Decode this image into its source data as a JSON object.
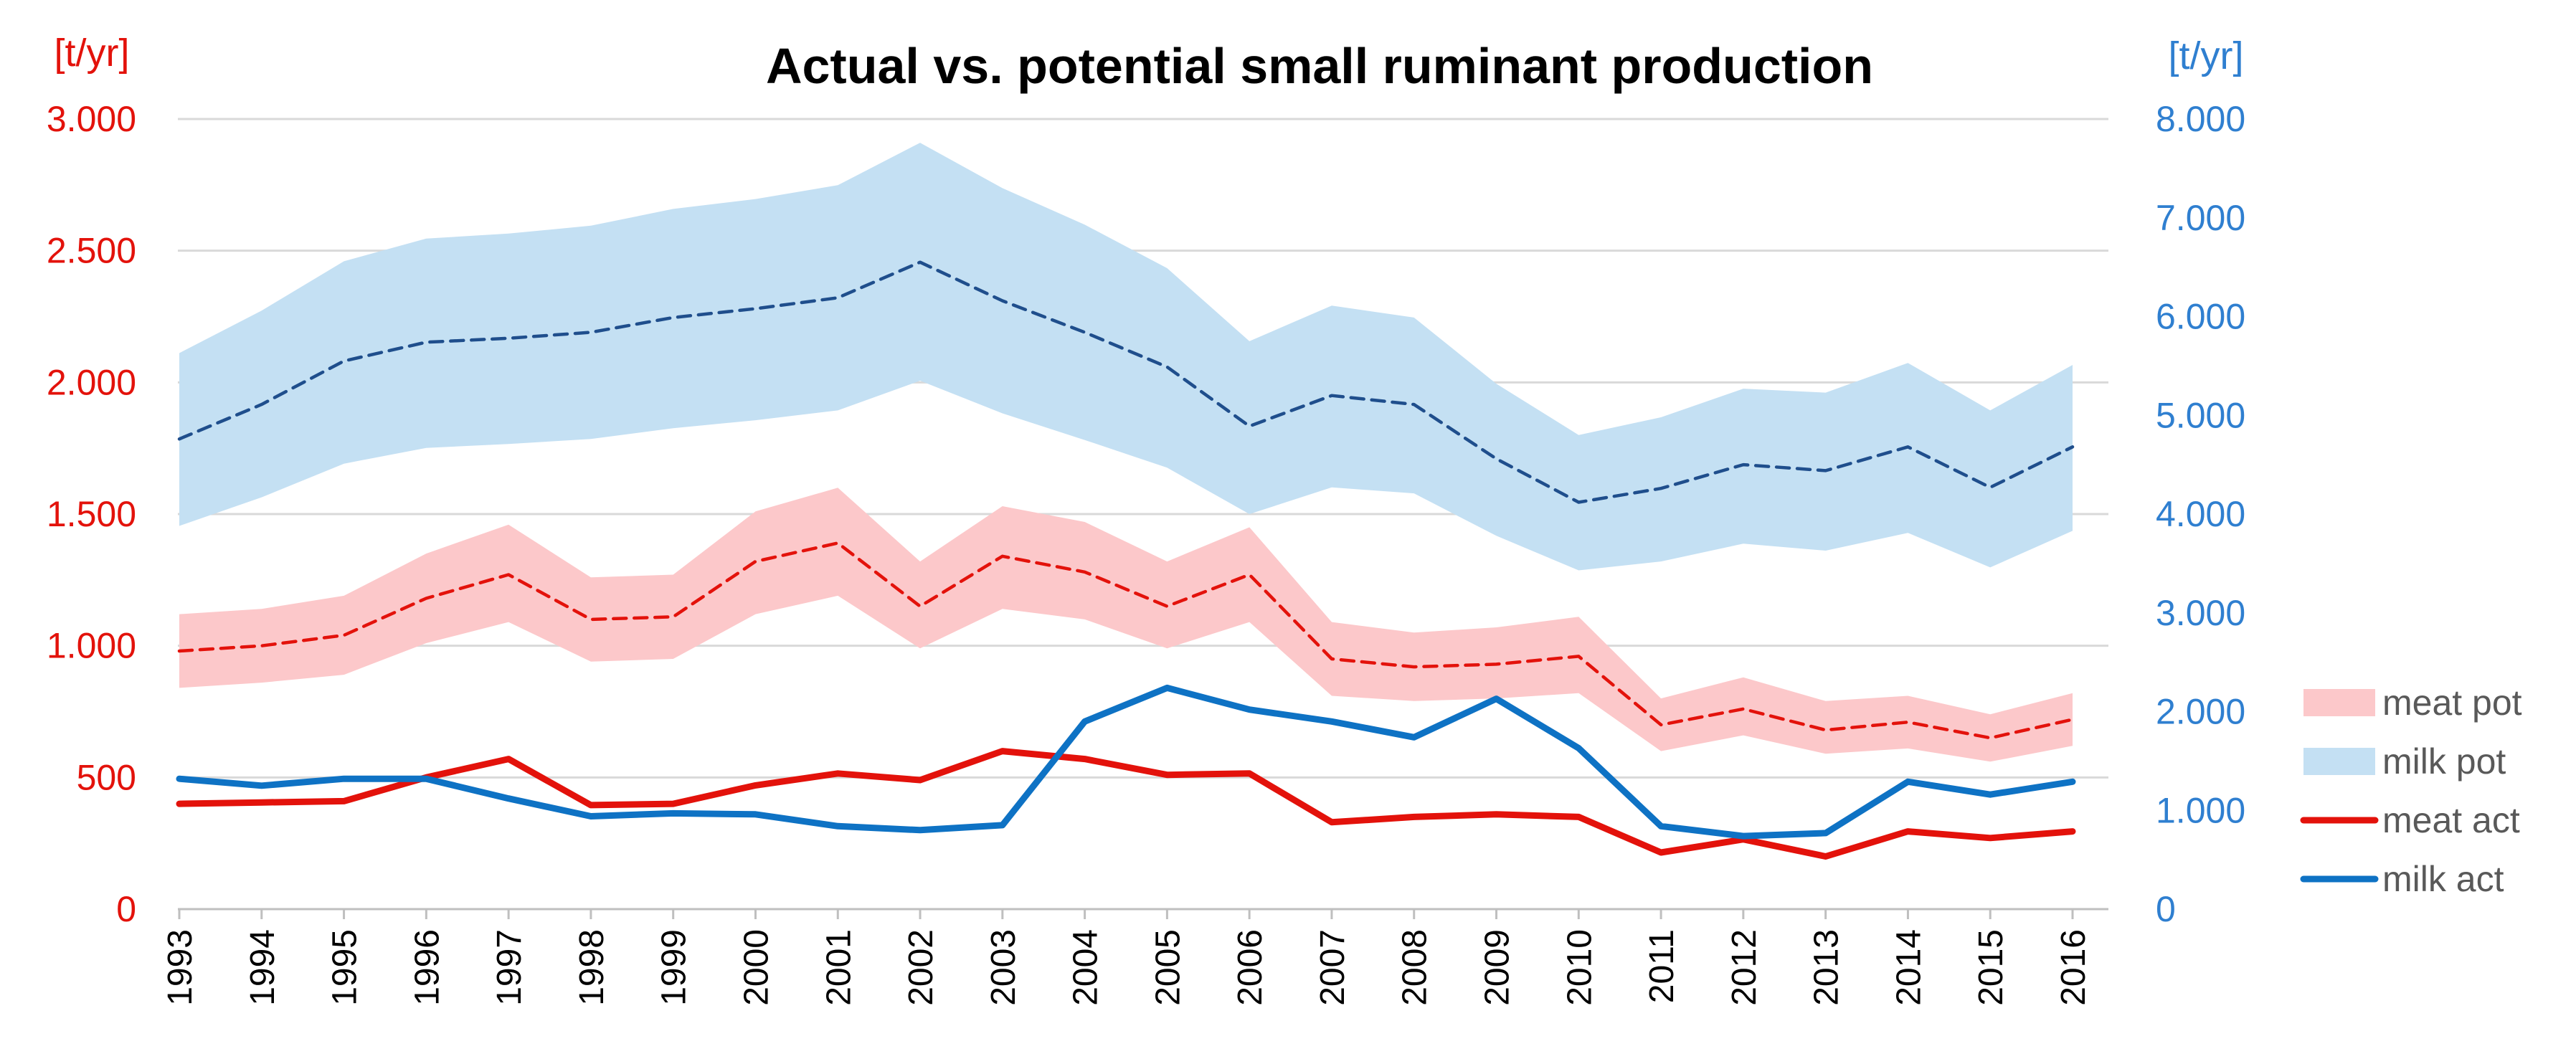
{
  "chart_data": {
    "type": "line",
    "title": "Actual vs. potential small ruminant production",
    "y_left_label": "[t/yr]",
    "y_right_label": "[t/yr]",
    "y_left_range": [
      0,
      3000
    ],
    "y_right_range": [
      0,
      8000
    ],
    "y_left_ticks": [
      0,
      500,
      1000,
      1500,
      2000,
      2500,
      3000
    ],
    "y_left_tick_labels": [
      "0",
      "500",
      "1.000",
      "1.500",
      "2.000",
      "2.500",
      "3.000"
    ],
    "y_right_ticks": [
      0,
      1000,
      2000,
      3000,
      4000,
      5000,
      6000,
      7000,
      8000
    ],
    "y_right_tick_labels": [
      "0",
      "1.000",
      "2.000",
      "3.000",
      "4.000",
      "5.000",
      "6.000",
      "7.000",
      "8.000"
    ],
    "grid": true,
    "legend_position": "right",
    "x": [
      "1993",
      "1994",
      "1995",
      "1996",
      "1997",
      "1998",
      "1999",
      "2000",
      "2001",
      "2002",
      "2003",
      "2004",
      "2005",
      "2006",
      "2007",
      "2008",
      "2009",
      "2010",
      "2011",
      "2012",
      "2013",
      "2014",
      "2015",
      "2016"
    ],
    "series": [
      {
        "name": "meat pot",
        "axis": "left",
        "style": "band",
        "color": "#fcc8ca",
        "upper": [
          1120,
          1140,
          1190,
          1350,
          1460,
          1260,
          1270,
          1510,
          1600,
          1320,
          1530,
          1470,
          1320,
          1450,
          1090,
          1050,
          1070,
          1110,
          800,
          880,
          790,
          810,
          740,
          820
        ],
        "lower": [
          840,
          860,
          890,
          1010,
          1090,
          940,
          950,
          1120,
          1190,
          990,
          1140,
          1100,
          990,
          1090,
          810,
          790,
          800,
          820,
          600,
          660,
          590,
          610,
          560,
          620
        ]
      },
      {
        "name": "milk pot",
        "axis": "right",
        "style": "band",
        "color": "#c4e0f3",
        "upper": [
          5630,
          6060,
          6560,
          6790,
          6840,
          6920,
          7090,
          7190,
          7330,
          7760,
          7300,
          6930,
          6490,
          5750,
          6110,
          5990,
          5320,
          4800,
          4980,
          5270,
          5230,
          5530,
          5050,
          5510
        ],
        "lower": [
          3880,
          4170,
          4510,
          4670,
          4710,
          4760,
          4870,
          4950,
          5050,
          5350,
          5020,
          4750,
          4470,
          4000,
          4270,
          4210,
          3780,
          3430,
          3520,
          3700,
          3630,
          3810,
          3460,
          3830
        ]
      },
      {
        "name": "meat pot mean",
        "axis": "left",
        "style": "dashed",
        "color": "#e3120b",
        "values": [
          980,
          1000,
          1040,
          1180,
          1270,
          1100,
          1110,
          1320,
          1390,
          1150,
          1340,
          1280,
          1150,
          1270,
          950,
          920,
          930,
          960,
          700,
          760,
          680,
          710,
          650,
          720
        ]
      },
      {
        "name": "milk pot mean",
        "axis": "right",
        "style": "dashed",
        "color": "#1f4e8c",
        "values": [
          4760,
          5110,
          5550,
          5740,
          5780,
          5840,
          5990,
          6080,
          6190,
          6550,
          6160,
          5840,
          5490,
          4890,
          5200,
          5110,
          4560,
          4120,
          4260,
          4500,
          4440,
          4680,
          4270,
          4680
        ]
      },
      {
        "name": "meat act",
        "axis": "left",
        "style": "solid",
        "color": "#e3120b",
        "values": [
          400,
          405,
          410,
          500,
          570,
          395,
          400,
          470,
          515,
          490,
          600,
          570,
          510,
          515,
          330,
          350,
          360,
          350,
          215,
          265,
          200,
          295,
          270,
          295
        ]
      },
      {
        "name": "milk act",
        "axis": "right",
        "style": "solid",
        "color": "#0e72c4",
        "values": [
          1320,
          1250,
          1320,
          1320,
          1120,
          940,
          970,
          960,
          840,
          800,
          850,
          1900,
          2240,
          2020,
          1900,
          1740,
          2130,
          1630,
          840,
          740,
          770,
          1290,
          1160,
          1290
        ]
      }
    ],
    "legend": [
      {
        "label": "meat pot",
        "kind": "band",
        "color": "#fcc8ca"
      },
      {
        "label": "milk pot",
        "kind": "band",
        "color": "#c4e0f3"
      },
      {
        "label": "meat act",
        "kind": "line",
        "color": "#e3120b"
      },
      {
        "label": "milk act",
        "kind": "line",
        "color": "#0e72c4"
      }
    ]
  }
}
